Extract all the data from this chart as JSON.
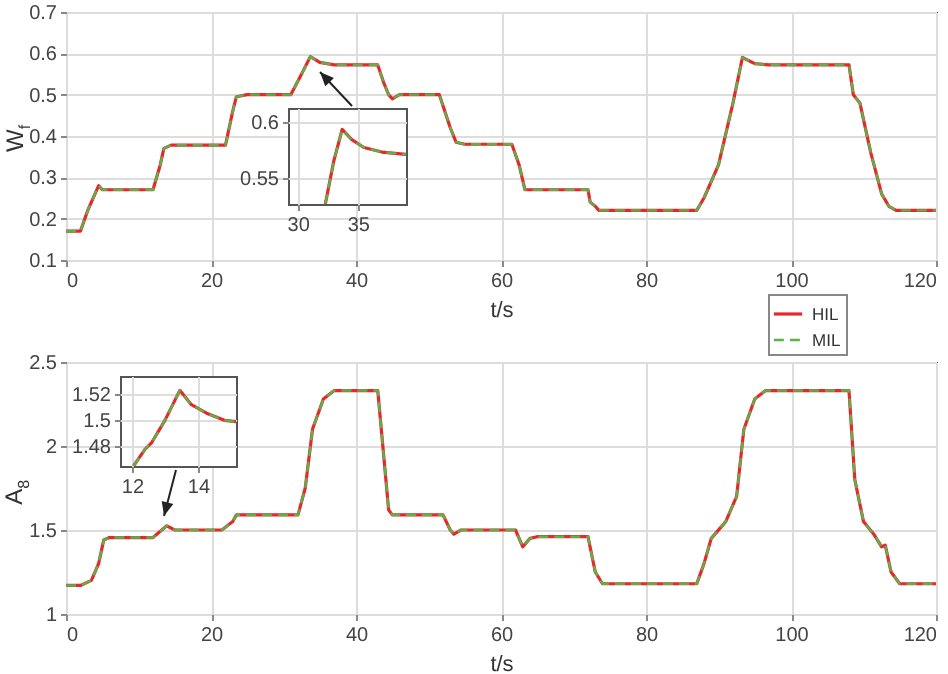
{
  "chart_data": [
    {
      "type": "line",
      "xlabel": "t/s",
      "ylabel": "W$_{f}$",
      "xlim": [
        0,
        120
      ],
      "xticks": [
        0,
        20,
        40,
        60,
        80,
        100,
        120
      ],
      "ylim": [
        0.1,
        0.7
      ],
      "yticks": [
        0.1,
        0.2,
        0.3,
        0.4,
        0.5,
        0.6,
        0.7
      ],
      "grid": true,
      "legend": "bottom right",
      "x": [
        0,
        2,
        3,
        4.5,
        5,
        12,
        13,
        13.5,
        14.5,
        22,
        23,
        23.5,
        25,
        31,
        32.5,
        33.7,
        35,
        37,
        43,
        43.8,
        44.5,
        45,
        46,
        51.5,
        53,
        53.8,
        55,
        61.5,
        62.5,
        63.3,
        72,
        72.3,
        73,
        73.5,
        87,
        88,
        90,
        92,
        93.3,
        95,
        97,
        108,
        108.6,
        109.5,
        111,
        112.5,
        113.5,
        114.5,
        120
      ],
      "series": [
        {
          "name": "HIL",
          "color": "#e8262b",
          "line_style": "solid",
          "values": [
            0.17,
            0.17,
            0.22,
            0.28,
            0.27,
            0.27,
            0.33,
            0.37,
            0.378,
            0.378,
            0.46,
            0.495,
            0.5,
            0.5,
            0.55,
            0.592,
            0.578,
            0.572,
            0.572,
            0.53,
            0.5,
            0.49,
            0.5,
            0.5,
            0.42,
            0.385,
            0.38,
            0.38,
            0.33,
            0.27,
            0.27,
            0.24,
            0.23,
            0.22,
            0.22,
            0.25,
            0.33,
            0.48,
            0.59,
            0.575,
            0.572,
            0.572,
            0.5,
            0.48,
            0.36,
            0.26,
            0.23,
            0.22,
            0.22
          ]
        },
        {
          "name": "MIL",
          "color": "#5fb04a",
          "line_style": "dashed",
          "values": [
            0.17,
            0.17,
            0.22,
            0.28,
            0.27,
            0.27,
            0.33,
            0.37,
            0.378,
            0.378,
            0.46,
            0.495,
            0.5,
            0.5,
            0.55,
            0.592,
            0.578,
            0.572,
            0.572,
            0.53,
            0.5,
            0.49,
            0.5,
            0.5,
            0.42,
            0.385,
            0.38,
            0.38,
            0.33,
            0.27,
            0.27,
            0.24,
            0.23,
            0.22,
            0.22,
            0.25,
            0.33,
            0.48,
            0.59,
            0.575,
            0.572,
            0.572,
            0.5,
            0.48,
            0.36,
            0.26,
            0.23,
            0.22,
            0.22
          ]
        }
      ]
    },
    {
      "type": "line",
      "xlim": [
        29.2,
        39
      ],
      "xticks": [
        30,
        35
      ],
      "ylim": [
        0.527,
        0.612
      ],
      "yticks": [
        0.55,
        0.6
      ],
      "grid": true,
      "x": [
        32.3,
        33,
        33.7,
        34.5,
        35.5,
        37,
        39
      ],
      "series": [
        {
          "color": "#e8262b",
          "line_style": "solid",
          "values": [
            0.527,
            0.565,
            0.593,
            0.584,
            0.577,
            0.573,
            0.571
          ]
        },
        {
          "color": "#5fb04a",
          "line_style": "dashed",
          "values": [
            0.527,
            0.565,
            0.593,
            0.584,
            0.577,
            0.573,
            0.571
          ]
        }
      ]
    },
    {
      "type": "line",
      "xlabel": "t/s",
      "ylabel": "A$_{8}$",
      "xlim": [
        0,
        120
      ],
      "xticks": [
        0,
        20,
        40,
        60,
        80,
        100,
        120
      ],
      "ylim": [
        1,
        2.5
      ],
      "yticks": [
        1,
        1.5,
        2,
        2.5
      ],
      "grid": true,
      "x": [
        0,
        2,
        3.5,
        4.5,
        5.2,
        6,
        12,
        13.9,
        15,
        21.5,
        23,
        23.5,
        32,
        33,
        34,
        35.5,
        37,
        43,
        43.7,
        44.5,
        45,
        52,
        53,
        53.5,
        54.5,
        62,
        63,
        64,
        65,
        72,
        73,
        74,
        87,
        88,
        89,
        91,
        92.5,
        93.5,
        95,
        96.5,
        108,
        108.8,
        110,
        111.5,
        112.5,
        113,
        113.8,
        115,
        120
      ],
      "series": [
        {
          "color": "#e8262b",
          "line_style": "solid",
          "values": [
            1.17,
            1.17,
            1.2,
            1.3,
            1.44,
            1.455,
            1.455,
            1.525,
            1.5,
            1.5,
            1.55,
            1.59,
            1.59,
            1.75,
            2.1,
            2.28,
            2.33,
            2.33,
            2.0,
            1.62,
            1.59,
            1.59,
            1.5,
            1.475,
            1.5,
            1.5,
            1.4,
            1.45,
            1.46,
            1.46,
            1.25,
            1.18,
            1.18,
            1.3,
            1.45,
            1.55,
            1.7,
            2.1,
            2.28,
            2.33,
            2.33,
            1.8,
            1.55,
            1.47,
            1.4,
            1.41,
            1.25,
            1.18,
            1.18
          ]
        },
        {
          "color": "#5fb04a",
          "line_style": "dashed",
          "values": [
            1.17,
            1.17,
            1.2,
            1.3,
            1.44,
            1.455,
            1.455,
            1.525,
            1.5,
            1.5,
            1.55,
            1.59,
            1.59,
            1.75,
            2.1,
            2.28,
            2.33,
            2.33,
            2.0,
            1.62,
            1.59,
            1.59,
            1.5,
            1.475,
            1.5,
            1.5,
            1.4,
            1.45,
            1.46,
            1.46,
            1.25,
            1.18,
            1.18,
            1.3,
            1.45,
            1.55,
            1.7,
            2.1,
            2.28,
            2.33,
            2.33,
            1.8,
            1.55,
            1.47,
            1.4,
            1.41,
            1.25,
            1.18,
            1.18
          ]
        }
      ]
    },
    {
      "type": "line",
      "xlim": [
        11.64,
        15.15
      ],
      "xticks": [
        12,
        14
      ],
      "ylim": [
        1.465,
        1.534
      ],
      "yticks": [
        1.48,
        1.5,
        1.52
      ],
      "grid": true,
      "x": [
        12.05,
        12.4,
        12.6,
        13,
        13.45,
        13.8,
        14.3,
        14.8,
        15.15
      ],
      "series": [
        {
          "color": "#e8262b",
          "line_style": "solid",
          "values": [
            1.465,
            1.478,
            1.483,
            1.5,
            1.523,
            1.512,
            1.505,
            1.5,
            1.499
          ]
        },
        {
          "color": "#5fb04a",
          "line_style": "dashed",
          "values": [
            1.465,
            1.478,
            1.483,
            1.5,
            1.523,
            1.512,
            1.505,
            1.5,
            1.499
          ]
        }
      ]
    }
  ]
}
